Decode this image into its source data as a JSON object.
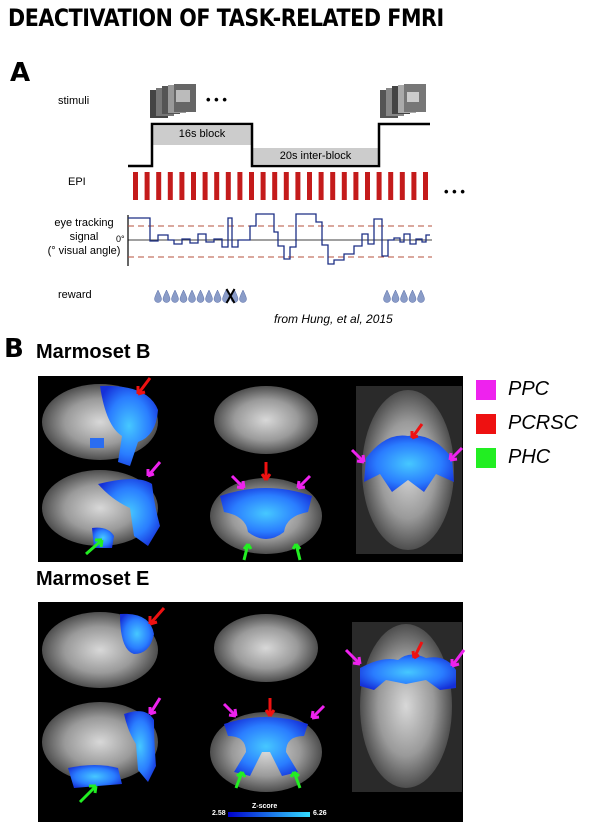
{
  "title": "DEACTIVATION OF TASK-RELATED FMRI",
  "panelA": {
    "letter": "A",
    "stimuli_label": "stimuli",
    "ellipsis": "• • •",
    "block_label": "16s block",
    "interblock_label": "20s inter-block",
    "epi_label": "EPI",
    "eye_label_1": "eye tracking",
    "eye_label_2": "signal",
    "eye_label_3": "(° visual angle)",
    "zero_label": "0°",
    "reward_label": "reward",
    "citation": "from Hung, et al, 2015",
    "colors": {
      "epi": "#c41b1b",
      "trace": "#1c2f85",
      "threshold": "#b5503c",
      "block": "#cccccc"
    }
  },
  "panelB": {
    "letter": "B",
    "subject_1": "Marmoset B",
    "subject_2": "Marmoset E",
    "legend": [
      {
        "label": "PPC",
        "color": "#ee22ee"
      },
      {
        "label": "PCRSC",
        "color": "#ee1111"
      },
      {
        "label": "PHC",
        "color": "#22ee22"
      }
    ],
    "colorbar": {
      "title": "Z-score",
      "min": "2.58",
      "max": "6.26",
      "colors": [
        "#0000cc",
        "#33ddff"
      ]
    }
  }
}
